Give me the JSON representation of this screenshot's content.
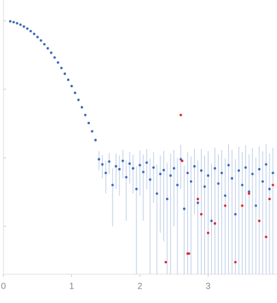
{
  "chart_data": {
    "type": "scatter",
    "log_y": true,
    "xlim": [
      0,
      4
    ],
    "xticks": [
      0,
      1,
      2,
      3
    ],
    "ylim": [
      0.0002,
      2
    ],
    "yticks": [
      0.001,
      0.01,
      0.1,
      1
    ],
    "error_color": "#b7c9e6",
    "series": [
      {
        "color": "#3b6ab8",
        "x": [
          0.1,
          0.15,
          0.2,
          0.25,
          0.3,
          0.35,
          0.4,
          0.45,
          0.5,
          0.55,
          0.6,
          0.65,
          0.7,
          0.75,
          0.8,
          0.85,
          0.9,
          0.95,
          1.0,
          1.05,
          1.1,
          1.15,
          1.2,
          1.25,
          1.3,
          1.35,
          1.4,
          1.45,
          1.5,
          1.55,
          1.6,
          1.65,
          1.7,
          1.75,
          1.8,
          1.85,
          1.9,
          1.95,
          2.0,
          2.05,
          2.1,
          2.15,
          2.2,
          2.25,
          2.3,
          2.35,
          2.4,
          2.45,
          2.5,
          2.55,
          2.6,
          2.65,
          2.7,
          2.75,
          2.8,
          2.85,
          2.9,
          2.95,
          3.0,
          3.05,
          3.1,
          3.15,
          3.2,
          3.25,
          3.3,
          3.35,
          3.4,
          3.45,
          3.5,
          3.55,
          3.6,
          3.65,
          3.7,
          3.75,
          3.8,
          3.85,
          3.9,
          3.95
        ],
        "values": [
          0.978,
          0.952,
          0.916,
          0.872,
          0.82,
          0.764,
          0.703,
          0.641,
          0.577,
          0.514,
          0.453,
          0.395,
          0.34,
          0.29,
          0.245,
          0.204,
          0.168,
          0.137,
          0.111,
          0.0884,
          0.0698,
          0.0545,
          0.042,
          0.0321,
          0.0243,
          0.0181,
          0.0095,
          0.008,
          0.006,
          0.0088,
          0.004,
          0.0075,
          0.0068,
          0.009,
          0.0052,
          0.0082,
          0.007,
          0.0035,
          0.0078,
          0.0062,
          0.0085,
          0.0048,
          0.0072,
          0.003,
          0.0058,
          0.0066,
          0.0025,
          0.0055,
          0.007,
          0.004,
          0.0095,
          0.0018,
          0.006,
          0.0045,
          0.0075,
          0.0022,
          0.0065,
          0.0038,
          0.0055,
          0.0012,
          0.007,
          0.0042,
          0.006,
          0.0028,
          0.0078,
          0.005,
          0.0015,
          0.0065,
          0.004,
          0.0072,
          0.0032,
          0.0058,
          0.002,
          0.0068,
          0.0045,
          0.008,
          0.0035,
          0.006
        ],
        "errors": [
          0.001,
          0.001,
          0.001,
          0.001,
          0.001,
          0.001,
          0.001,
          0.001,
          0.001,
          0.001,
          0.001,
          0.001,
          0.001,
          0.001,
          0.001,
          0.001,
          0.001,
          0.001,
          0.001,
          0.001,
          0.001,
          0.001,
          0.001,
          0.001,
          0.001,
          0.001,
          0.003,
          0.003,
          0.003,
          0.003,
          0.003,
          0.004,
          0.004,
          0.004,
          0.004,
          0.004,
          0.004,
          0.004,
          0.005,
          0.005,
          0.005,
          0.005,
          0.005,
          0.005,
          0.005,
          0.006,
          0.006,
          0.006,
          0.006,
          0.006,
          0.006,
          0.006,
          0.006,
          0.006,
          0.006,
          0.007,
          0.007,
          0.007,
          0.007,
          0.007,
          0.007,
          0.007,
          0.007,
          0.007,
          0.008,
          0.008,
          0.008,
          0.008,
          0.008,
          0.008,
          0.008,
          0.008,
          0.008,
          0.008,
          0.008,
          0.008,
          0.008,
          0.008
        ]
      },
      {
        "color": "#e0242b",
        "x": [
          2.38,
          2.6,
          2.62,
          2.7,
          2.72,
          2.85,
          2.9,
          3.0,
          3.1,
          3.25,
          3.4,
          3.5,
          3.6,
          3.75,
          3.85,
          3.9,
          3.95
        ],
        "values": [
          0.0003,
          0.042,
          0.009,
          0.0004,
          0.0004,
          0.0025,
          0.0015,
          0.0008,
          0.0011,
          0.002,
          0.0003,
          0.002,
          0.003,
          0.0012,
          0.0007,
          0.0025,
          0.004
        ]
      }
    ]
  }
}
